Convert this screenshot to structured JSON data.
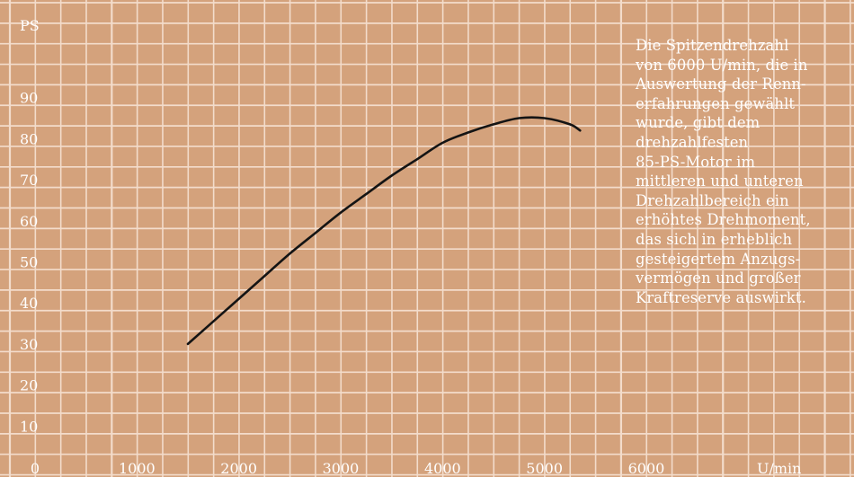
{
  "chart_data": {
    "type": "line",
    "xlabel": "U/min",
    "ylabel": "PS",
    "xlim": [
      0,
      7000
    ],
    "ylim": [
      0,
      95
    ],
    "x_ticks": [
      "0",
      "1000",
      "2000",
      "3000",
      "4000",
      "5000",
      "6000"
    ],
    "y_ticks": [
      "10",
      "20",
      "30",
      "40",
      "50",
      "60",
      "70",
      "80",
      "90"
    ],
    "grid": true,
    "series": [
      {
        "x": [
          1500,
          1750,
          2000,
          2250,
          2500,
          2750,
          3000,
          3250,
          3500,
          3750,
          4000,
          4250,
          4500,
          4750,
          5000,
          5250,
          5350
        ],
        "y": [
          30,
          35.5,
          41,
          46.5,
          52,
          57,
          62,
          66.5,
          71,
          75,
          79,
          81.5,
          83.5,
          85,
          85,
          83.5,
          82
        ]
      }
    ],
    "annotation": "Die Spitzendrehzahl\nvon 6000 U/min, die in\nAuswertung der Renn-\nerfahrungen gewählt\nwurde, gibt dem\ndrehzahlfesten\n85-PS-Motor im\nmittleren und unteren\nDrehzahlbereich ein\nerhöhtes Drehmoment,\ndas sich in erheblich\ngesteigertem Anzugs-\nvermögen und großer\nKraftreserve auswirkt."
  },
  "colors": {
    "background": "#d4a27c",
    "grid": "#f3dccb",
    "curve": "#141414",
    "text": "#ffffff"
  }
}
